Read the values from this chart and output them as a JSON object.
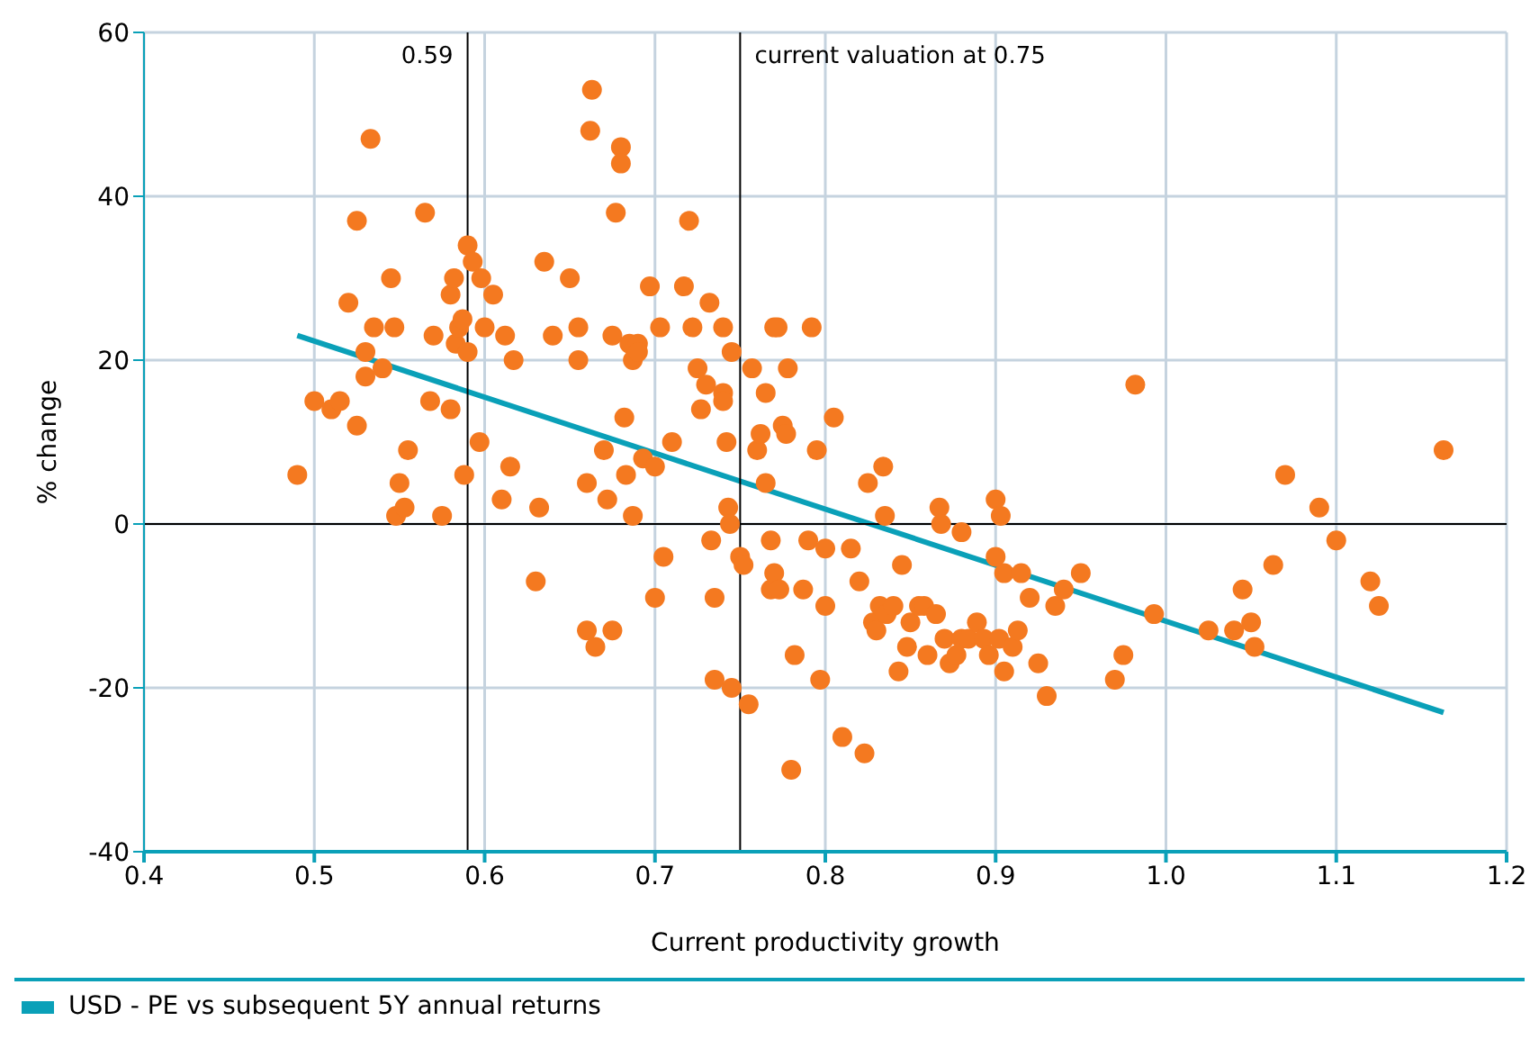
{
  "chart_data": {
    "type": "scatter",
    "xlabel": "Current productivity growth",
    "ylabel": "% change",
    "xlim": [
      0.4,
      1.2
    ],
    "ylim": [
      -40,
      60
    ],
    "xticks": [
      0.4,
      0.5,
      0.6,
      0.7,
      0.8,
      0.9,
      {
        "value": 1,
        "label": "1.0"
      },
      1.1,
      1.2
    ],
    "yticks": [
      -40,
      -20,
      0,
      20,
      40,
      60
    ],
    "grid": true,
    "legend": "bottom left",
    "ref_lines": [
      {
        "axis": "x",
        "value": 0.59,
        "label": "0.59",
        "color": "#000000"
      },
      {
        "axis": "x",
        "value": 0.75,
        "label": "current valuation at 0.75",
        "color": "#000000"
      },
      {
        "axis": "y",
        "value": 0,
        "label": null,
        "color": "#000000"
      }
    ],
    "series": [
      {
        "marker": "circle",
        "color": "#f47920",
        "x": [
          0.49,
          0.5,
          0.51,
          0.515,
          0.52,
          0.525,
          0.525,
          0.53,
          0.53,
          0.535,
          0.533,
          0.54,
          0.545,
          0.547,
          0.548,
          0.55,
          0.553,
          0.555,
          0.565,
          0.568,
          0.57,
          0.575,
          0.58,
          0.58,
          0.582,
          0.583,
          0.585,
          0.587,
          0.588,
          0.59,
          0.59,
          0.593,
          0.597,
          0.598,
          0.6,
          0.605,
          0.61,
          0.612,
          0.615,
          0.617,
          0.63,
          0.632,
          0.635,
          0.64,
          0.65,
          0.655,
          0.655,
          0.66,
          0.66,
          0.662,
          0.663,
          0.665,
          0.67,
          0.672,
          0.675,
          0.675,
          0.677,
          0.68,
          0.68,
          0.682,
          0.683,
          0.685,
          0.687,
          0.687,
          0.69,
          0.69,
          0.693,
          0.697,
          0.7,
          0.7,
          0.703,
          0.705,
          0.71,
          0.717,
          0.72,
          0.722,
          0.725,
          0.727,
          0.73,
          0.732,
          0.733,
          0.735,
          0.735,
          0.74,
          0.74,
          0.74,
          0.742,
          0.743,
          0.744,
          0.745,
          0.745,
          0.75,
          0.752,
          0.755,
          0.757,
          0.76,
          0.762,
          0.765,
          0.765,
          0.768,
          0.768,
          0.77,
          0.77,
          0.772,
          0.775,
          0.777,
          0.778,
          0.773,
          0.78,
          0.782,
          0.787,
          0.79,
          0.792,
          0.795,
          0.797,
          0.8,
          0.8,
          0.805,
          0.81,
          0.815,
          0.82,
          0.823,
          0.825,
          0.828,
          0.83,
          0.832,
          0.834,
          0.835,
          0.836,
          0.84,
          0.843,
          0.845,
          0.848,
          0.85,
          0.855,
          0.858,
          0.86,
          0.865,
          0.867,
          0.868,
          0.87,
          0.873,
          0.877,
          0.88,
          0.88,
          0.884,
          0.889,
          0.893,
          0.896,
          0.902,
          0.9,
          0.9,
          0.903,
          0.905,
          0.905,
          0.91,
          0.913,
          0.915,
          0.92,
          0.925,
          0.93,
          0.935,
          0.94,
          0.95,
          0.97,
          0.975,
          0.982,
          0.993,
          1.025,
          1.04,
          1.045,
          1.05,
          1.052,
          1.063,
          1.07,
          1.09,
          1.1,
          1.12,
          1.125,
          1.163
        ],
        "values": [
          6,
          15,
          14,
          15,
          27,
          37,
          12,
          21,
          18,
          24,
          47,
          19,
          30,
          24,
          1,
          5,
          2,
          9,
          38,
          15,
          23,
          1,
          14,
          28,
          30,
          22,
          24,
          25,
          6,
          21,
          34,
          32,
          10,
          30,
          24,
          28,
          3,
          23,
          7,
          20,
          -7,
          2,
          32,
          23,
          30,
          20,
          24,
          5,
          -13,
          48,
          53,
          -15,
          9,
          3,
          -13,
          23,
          38,
          46,
          44,
          13,
          6,
          22,
          1,
          20,
          22,
          21,
          8,
          29,
          -9,
          7,
          24,
          -4,
          10,
          29,
          37,
          24,
          19,
          14,
          17,
          27,
          -2,
          -9,
          -19,
          16,
          15,
          24,
          10,
          2,
          0,
          21,
          -20,
          -4,
          -5,
          -22,
          19,
          9,
          11,
          16,
          5,
          -8,
          -2,
          -6,
          24,
          24,
          12,
          11,
          19,
          -8,
          -30,
          -16,
          -8,
          -2,
          24,
          9,
          -19,
          -3,
          -10,
          13,
          -26,
          -3,
          -7,
          -28,
          5,
          -12,
          -13,
          -10,
          7,
          1,
          -11,
          -10,
          -18,
          -5,
          -15,
          -12,
          -10,
          -10,
          -16,
          -11,
          2,
          0,
          -14,
          -17,
          -16,
          -14,
          -1,
          -14,
          -12,
          -14,
          -16,
          -14,
          3,
          -4,
          1,
          -6,
          -18,
          -15,
          -13,
          -6,
          -9,
          -17,
          -21,
          -10,
          -8,
          -6,
          -19,
          -16,
          17,
          -11,
          -13,
          -13,
          -8,
          -12,
          -15,
          -5,
          6,
          2,
          -2,
          -7,
          -10,
          9
        ]
      },
      {
        "type": "line",
        "name": "USD - PE vs subsequent 5Y annual returns",
        "color": "#0aa0b8",
        "x": [
          0.49,
          1.163
        ],
        "values": [
          23,
          -23
        ]
      }
    ]
  }
}
